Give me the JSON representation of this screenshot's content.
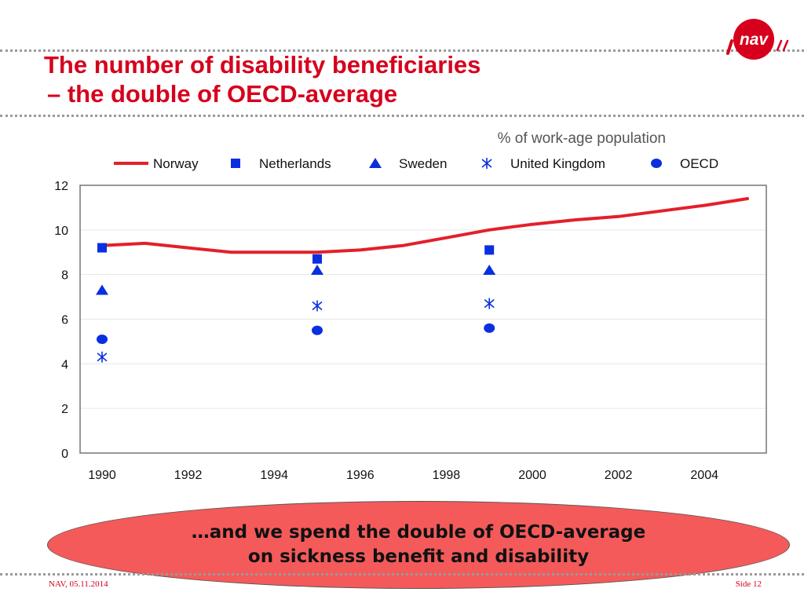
{
  "slide": {
    "title_line1": "The number of disability beneficiaries",
    "title_line2": "– the double of OECD-average",
    "logo_text": "nav",
    "callout_line1": "…and we spend the double of OECD-average",
    "callout_line2": "on sickness benefit and disability",
    "footer_left": "NAV, 05.11.2014",
    "footer_right": "Side 12"
  },
  "colors": {
    "accent_red": "#d6001c",
    "norway_line": "#e3202a",
    "marker_blue": "#0a2fe0",
    "callout_fill": "#f45a5a"
  },
  "chart_data": {
    "type": "line",
    "subtitle": "% of work-age population",
    "xlabel": "",
    "ylabel": "",
    "xlim": [
      1990,
      2005.5
    ],
    "ylim": [
      0,
      12
    ],
    "x_ticks": [
      1990,
      1992,
      1994,
      1996,
      1998,
      2000,
      2002,
      2004
    ],
    "y_ticks": [
      0,
      2,
      4,
      6,
      8,
      10,
      12
    ],
    "grid": true,
    "legend_position": "top",
    "series": [
      {
        "name": "Norway",
        "marker": "line",
        "points": [
          [
            1990,
            9.3
          ],
          [
            1991,
            9.4
          ],
          [
            1992,
            9.2
          ],
          [
            1993,
            9.0
          ],
          [
            1994,
            9.0
          ],
          [
            1995,
            9.0
          ],
          [
            1996,
            9.1
          ],
          [
            1997,
            9.3
          ],
          [
            1998,
            9.65
          ],
          [
            1999,
            10.0
          ],
          [
            2000,
            10.25
          ],
          [
            2001,
            10.45
          ],
          [
            2002,
            10.6
          ],
          [
            2003,
            10.85
          ],
          [
            2004,
            11.1
          ],
          [
            2005,
            11.4
          ]
        ]
      },
      {
        "name": "Netherlands",
        "marker": "square",
        "points": [
          [
            1990,
            9.2
          ],
          [
            1995,
            8.7
          ],
          [
            1999,
            9.1
          ]
        ]
      },
      {
        "name": "Sweden",
        "marker": "triangle",
        "points": [
          [
            1990,
            7.3
          ],
          [
            1995,
            8.2
          ],
          [
            1999,
            8.2
          ]
        ]
      },
      {
        "name": "United Kingdom",
        "marker": "asterisk",
        "points": [
          [
            1990,
            4.3
          ],
          [
            1995,
            6.6
          ],
          [
            1999,
            6.7
          ]
        ]
      },
      {
        "name": "OECD",
        "marker": "circle",
        "points": [
          [
            1990,
            5.1
          ],
          [
            1995,
            5.5
          ],
          [
            1999,
            5.6
          ]
        ]
      }
    ]
  }
}
